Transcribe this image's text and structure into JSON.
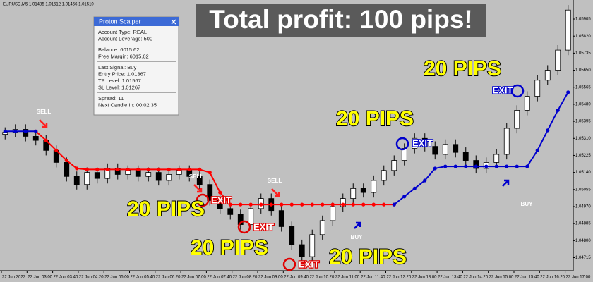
{
  "chart_data": {
    "type": "candlestick",
    "title": "Total profit: 100 pips!",
    "symbol_header": "EURUSD,M5  1.01485 1.01512 1.01466 1.01510",
    "up_color": "#ffffff",
    "down_color": "#000000",
    "open": [
      1.0533,
      1.0534,
      1.05355,
      1.0532,
      1.053,
      1.0525,
      1.0519,
      1.0512,
      1.0508,
      1.0514,
      1.0511,
      1.0516,
      1.0513,
      1.0515,
      1.0512,
      1.0514,
      1.051,
      1.0513,
      1.0515,
      1.0512,
      1.0508,
      1.05,
      1.0496,
      1.0493,
      1.0488,
      1.0496,
      1.0501,
      1.0495,
      1.0487,
      1.0478,
      1.0472,
      1.0483,
      1.049,
      1.0497,
      1.0501,
      1.0506,
      1.0504,
      1.051,
      1.0515,
      1.052,
      1.0526,
      1.0531,
      1.0527,
      1.0523,
      1.0528,
      1.0524,
      1.052,
      1.0516,
      1.0519,
      1.0523,
      1.0536,
      1.0545,
      1.0552,
      1.056,
      1.0565,
      1.0575
    ],
    "high": [
      1.05365,
      1.0538,
      1.0538,
      1.05345,
      1.05325,
      1.05275,
      1.05215,
      1.05145,
      1.05165,
      1.05165,
      1.05185,
      1.05185,
      1.05175,
      1.05175,
      1.05165,
      1.05165,
      1.05155,
      1.05175,
      1.05175,
      1.05145,
      1.05105,
      1.05025,
      1.04985,
      1.04955,
      1.04985,
      1.05035,
      1.05035,
      1.04975,
      1.04895,
      1.04805,
      1.04855,
      1.04925,
      1.04995,
      1.05035,
      1.05085,
      1.05085,
      1.05125,
      1.05175,
      1.05225,
      1.05285,
      1.05335,
      1.05335,
      1.05295,
      1.05305,
      1.05305,
      1.05265,
      1.05225,
      1.05215,
      1.05255,
      1.05385,
      1.05475,
      1.05545,
      1.05625,
      1.05675,
      1.05775,
      1.05975
    ],
    "low": [
      1.05305,
      1.05315,
      1.05295,
      1.05275,
      1.05225,
      1.05165,
      1.05095,
      1.05055,
      1.05055,
      1.05085,
      1.05085,
      1.05105,
      1.05105,
      1.05095,
      1.05095,
      1.05075,
      1.05075,
      1.05105,
      1.05095,
      1.05055,
      1.04975,
      1.04935,
      1.04905,
      1.04855,
      1.04855,
      1.04935,
      1.04925,
      1.04845,
      1.04755,
      1.04695,
      1.04695,
      1.04805,
      1.04875,
      1.04945,
      1.04985,
      1.05015,
      1.05015,
      1.05075,
      1.05125,
      1.05175,
      1.05235,
      1.05245,
      1.05205,
      1.05205,
      1.05215,
      1.05175,
      1.05135,
      1.05135,
      1.05165,
      1.05205,
      1.05335,
      1.05425,
      1.05495,
      1.05575,
      1.05625,
      1.05725
    ],
    "close": [
      1.0534,
      1.05355,
      1.0532,
      1.053,
      1.0525,
      1.0519,
      1.0512,
      1.0508,
      1.0514,
      1.0511,
      1.0516,
      1.0513,
      1.0515,
      1.0512,
      1.0514,
      1.051,
      1.0513,
      1.0515,
      1.0512,
      1.0508,
      1.05,
      1.0496,
      1.0493,
      1.0488,
      1.0496,
      1.0501,
      1.0495,
      1.0487,
      1.0478,
      1.0472,
      1.0483,
      1.049,
      1.0497,
      1.0501,
      1.0506,
      1.0504,
      1.051,
      1.0515,
      1.052,
      1.0526,
      1.0531,
      1.0527,
      1.0523,
      1.0528,
      1.0524,
      1.052,
      1.0516,
      1.0519,
      1.0523,
      1.0536,
      1.0545,
      1.0552,
      1.056,
      1.0565,
      1.0575,
      1.0595
    ],
    "lines": [
      {
        "color": "#ff0000",
        "values": [
          null,
          null,
          null,
          1.05345,
          1.053,
          1.0525,
          1.052,
          1.0516,
          1.05155,
          1.05155,
          1.05155,
          1.05155,
          1.05155,
          1.05155,
          1.05155,
          1.05155,
          1.05155,
          1.05155,
          1.05155,
          1.05155,
          1.0514,
          1.0504,
          1.0498,
          1.0498,
          1.0498,
          1.0498,
          1.0498,
          1.0498,
          1.0498,
          1.0498,
          1.0498,
          1.0498,
          1.0498,
          1.0498,
          1.0498,
          1.0498,
          1.0498,
          1.0498,
          1.0498,
          null,
          null,
          null,
          null,
          null,
          null,
          null,
          null,
          null,
          null,
          null,
          null,
          null,
          null,
          null,
          null,
          null
        ]
      },
      {
        "color": "#0000cc",
        "values": [
          1.05345,
          1.05345,
          1.05345,
          1.05345,
          null,
          null,
          null,
          null,
          null,
          null,
          null,
          null,
          null,
          null,
          null,
          null,
          null,
          null,
          null,
          null,
          null,
          null,
          null,
          null,
          null,
          null,
          null,
          null,
          null,
          null,
          null,
          null,
          null,
          null,
          null,
          null,
          null,
          null,
          1.0498,
          1.0502,
          1.0506,
          1.051,
          1.0516,
          1.0517,
          1.0517,
          1.0517,
          1.0517,
          1.0517,
          1.0517,
          1.0517,
          1.0517,
          1.0517,
          1.0525,
          1.0535,
          1.0545,
          1.0554
        ]
      }
    ],
    "ylim": [
      1.0465,
      1.06
    ],
    "yticks": [
      {
        "value": 1.04715,
        "label": "1.04715"
      },
      {
        "value": 1.048,
        "label": "1.04800"
      },
      {
        "value": 1.04885,
        "label": "1.04885"
      },
      {
        "value": 1.0497,
        "label": "1.04970"
      },
      {
        "value": 1.05055,
        "label": "1.05055"
      },
      {
        "value": 1.0514,
        "label": "1.05140"
      },
      {
        "value": 1.05225,
        "label": "1.05225"
      },
      {
        "value": 1.0531,
        "label": "1.05310"
      },
      {
        "value": 1.05395,
        "label": "1.05395"
      },
      {
        "value": 1.0548,
        "label": "1.05480"
      },
      {
        "value": 1.05565,
        "label": "1.05565"
      },
      {
        "value": 1.0565,
        "label": "1.05650"
      },
      {
        "value": 1.05735,
        "label": "1.05735"
      },
      {
        "value": 1.0582,
        "label": "1.05820"
      },
      {
        "value": 1.05905,
        "label": "1.05905"
      }
    ],
    "xlabels": [
      "22 Jun 2022",
      "22 Jun 03:00",
      "22 Jun 03:40",
      "22 Jun 04:20",
      "22 Jun 05:00",
      "22 Jun 05:40",
      "22 Jun 06:20",
      "22 Jun 07:00",
      "22 Jun 07:40",
      "22 Jun 08:20",
      "22 Jun 09:00",
      "22 Jun 09:40",
      "22 Jun 10:20",
      "22 Jun 11:00",
      "22 Jun 11:40",
      "22 Jun 12:20",
      "22 Jun 13:00",
      "22 Jun 13:40",
      "22 Jun 14:20",
      "22 Jun 15:00",
      "22 Jun 15:40",
      "22 Jun 16:20",
      "22 Jun 17:00"
    ],
    "annotations": {
      "pips": [
        "20 PIPS",
        "20 PIPS",
        "20 PIPS",
        "20 PIPS",
        "20 PIPS"
      ],
      "exit": [
        "EXIT",
        "EXIT",
        "EXIT",
        "EXIT",
        "EXIT"
      ],
      "sell": [
        "SELL",
        "SELL",
        "SELL"
      ],
      "buy": [
        "BUY",
        "BUY"
      ]
    }
  },
  "panel": {
    "title": "Proton Scalper",
    "groups": [
      [
        "Account Type: REAL",
        "Account Leverage: 500"
      ],
      [
        "Balance: 6015.62",
        "Free Margin: 6015.62"
      ],
      [
        "Last Signal: Buy",
        "Entry Price: 1.01367",
        "TP Level: 1.01567",
        "SL Level: 1.01267"
      ],
      [
        "Spread: 11",
        "Next Candle In: 00:02:35"
      ]
    ]
  }
}
